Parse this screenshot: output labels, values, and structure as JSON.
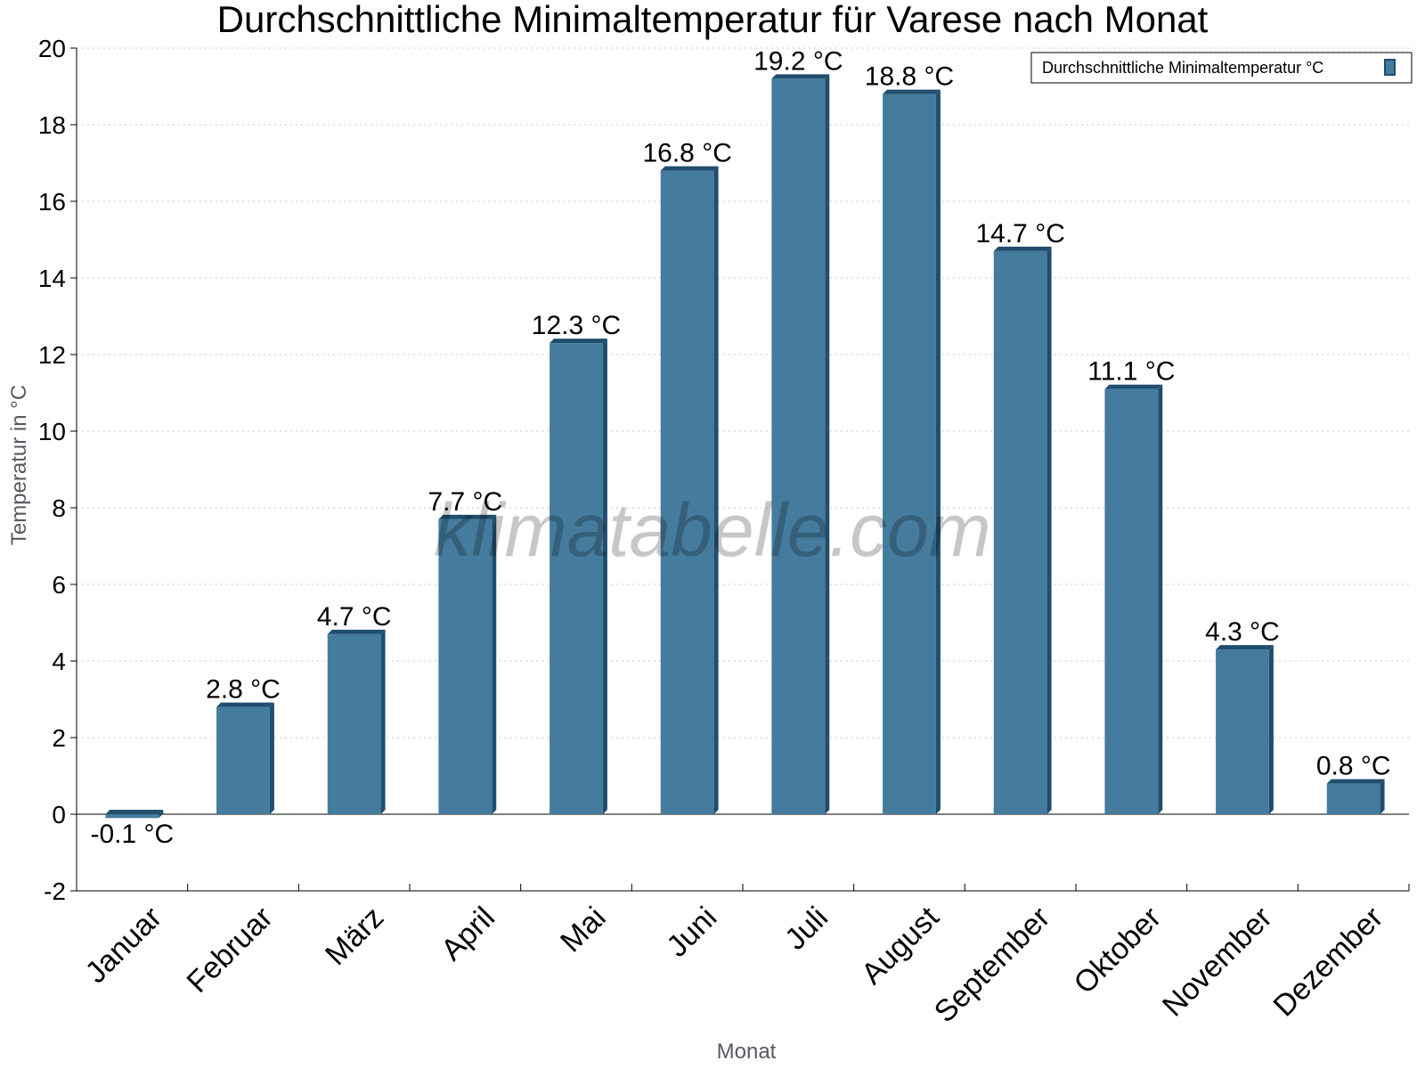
{
  "chart_data": {
    "type": "bar",
    "title": "Durchschnittliche Minimaltemperatur für Varese nach Monat",
    "xlabel": "Monat",
    "ylabel": "Temperatur in °C",
    "categories": [
      "Januar",
      "Februar",
      "März",
      "April",
      "Mai",
      "Juni",
      "Juli",
      "August",
      "September",
      "Oktober",
      "November",
      "Dezember"
    ],
    "series": [
      {
        "name": "Durchschnittliche Minimaltemperatur °C",
        "values": [
          -0.1,
          2.8,
          4.7,
          7.7,
          12.3,
          16.8,
          19.2,
          18.8,
          14.7,
          11.1,
          4.3,
          0.8
        ],
        "labels": [
          "-0.1 °C",
          "2.8 °C",
          "4.7 °C",
          "7.7 °C",
          "12.3 °C",
          "16.8 °C",
          "19.2 °C",
          "18.8 °C",
          "14.7 °C",
          "11.1 °C",
          "4.3 °C",
          "0.8 °C"
        ],
        "color": "#457b9d",
        "edge_color": "#1f4e6e"
      }
    ],
    "ylim": [
      -2,
      20
    ],
    "yticks": [
      "-2",
      "0",
      "2",
      "4",
      "6",
      "8",
      "10",
      "12",
      "14",
      "16",
      "18",
      "20"
    ],
    "grid": true,
    "legend_position": "top-right"
  },
  "watermark": "klimatabelle.com"
}
